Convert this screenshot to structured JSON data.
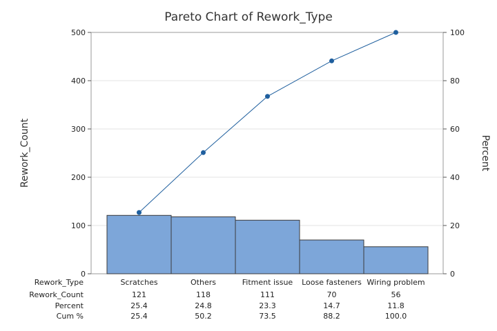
{
  "chart_data": {
    "type": "bar",
    "subtype": "pareto",
    "title": "Pareto Chart of Rework_Type",
    "ylabel": "Rework_Count",
    "y2label": "Percent",
    "ylim": [
      0,
      500
    ],
    "y2lim": [
      0,
      100
    ],
    "yticks": [
      "0",
      "100",
      "200",
      "300",
      "400",
      "500"
    ],
    "y2ticks": [
      "0",
      "20",
      "40",
      "60",
      "80",
      "100"
    ],
    "categories": [
      "Scratches",
      "Others",
      "Fitment issue",
      "Loose fasteners",
      "Wiring problem"
    ],
    "values": [
      121,
      118,
      111,
      70,
      56
    ],
    "cum_percent": [
      25.4,
      50.2,
      73.5,
      88.2,
      100.0
    ],
    "grid": "horizontal",
    "bar_color": "#7da6d9",
    "line_color": "#1f5f9e",
    "table": {
      "row_labels": [
        "Rework_Type",
        "Rework_Count",
        "Percent",
        "Cum %"
      ],
      "rows": [
        [
          "Scratches",
          "Others",
          "Fitment issue",
          "Loose fasteners",
          "Wiring problem"
        ],
        [
          "121",
          "118",
          "111",
          "70",
          "56"
        ],
        [
          "25.4",
          "24.8",
          "23.3",
          "14.7",
          "11.8"
        ],
        [
          "25.4",
          "50.2",
          "73.5",
          "88.2",
          "100.0"
        ]
      ]
    }
  }
}
